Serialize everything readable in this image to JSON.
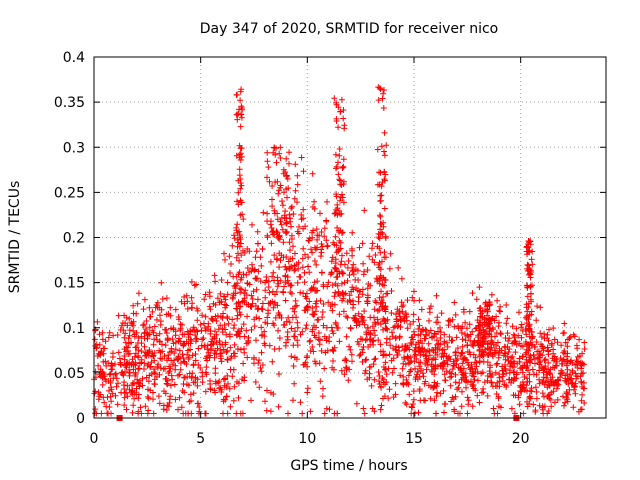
{
  "chart_data": {
    "type": "scatter",
    "title": "Day 347 of 2020, SRMTID for receiver nico",
    "xlabel": "GPS time / hours",
    "ylabel": "SRMTID / TECUs",
    "xlim": [
      0,
      24
    ],
    "ylim": [
      0,
      0.4
    ],
    "x_ticks": [
      0,
      5,
      10,
      15,
      20
    ],
    "y_ticks": [
      0,
      0.05,
      0.1,
      0.15,
      0.2,
      0.25,
      0.3,
      0.35,
      0.4
    ],
    "x_tick_labels": [
      "0",
      "5",
      "10",
      "15",
      "20"
    ],
    "y_tick_labels": [
      "0",
      "0.05",
      "0.1",
      "0.15",
      "0.2",
      "0.25",
      "0.3",
      "0.35",
      "0.4"
    ],
    "grid": true,
    "marker": "+",
    "color": "#ff0000",
    "markers_on_axis": [
      1.2,
      19.8
    ],
    "series": [
      {
        "name": "SRMTID",
        "profile": [
          [
            0.0,
            0.055
          ],
          [
            1.0,
            0.045
          ],
          [
            1.5,
            0.065
          ],
          [
            3.0,
            0.07
          ],
          [
            4.5,
            0.07
          ],
          [
            6.0,
            0.085
          ],
          [
            7.0,
            0.11
          ],
          [
            8.0,
            0.13
          ],
          [
            9.0,
            0.145
          ],
          [
            10.0,
            0.135
          ],
          [
            11.0,
            0.13
          ],
          [
            12.0,
            0.12
          ],
          [
            13.0,
            0.11
          ],
          [
            14.0,
            0.085
          ],
          [
            15.0,
            0.07
          ],
          [
            17.0,
            0.065
          ],
          [
            18.5,
            0.07
          ],
          [
            19.5,
            0.055
          ],
          [
            20.5,
            0.065
          ],
          [
            21.5,
            0.05
          ],
          [
            23.0,
            0.05
          ]
        ],
        "bursts": [
          {
            "x": 6.8,
            "width": 0.15,
            "peak": 0.365
          },
          {
            "x": 8.7,
            "width": 0.6,
            "peak": 0.3
          },
          {
            "x": 11.5,
            "width": 0.25,
            "peak": 0.355
          },
          {
            "x": 13.5,
            "width": 0.2,
            "peak": 0.37
          },
          {
            "x": 20.4,
            "width": 0.15,
            "peak": 0.2
          },
          {
            "x": 18.3,
            "width": 0.3,
            "peak": 0.13
          }
        ]
      }
    ]
  }
}
